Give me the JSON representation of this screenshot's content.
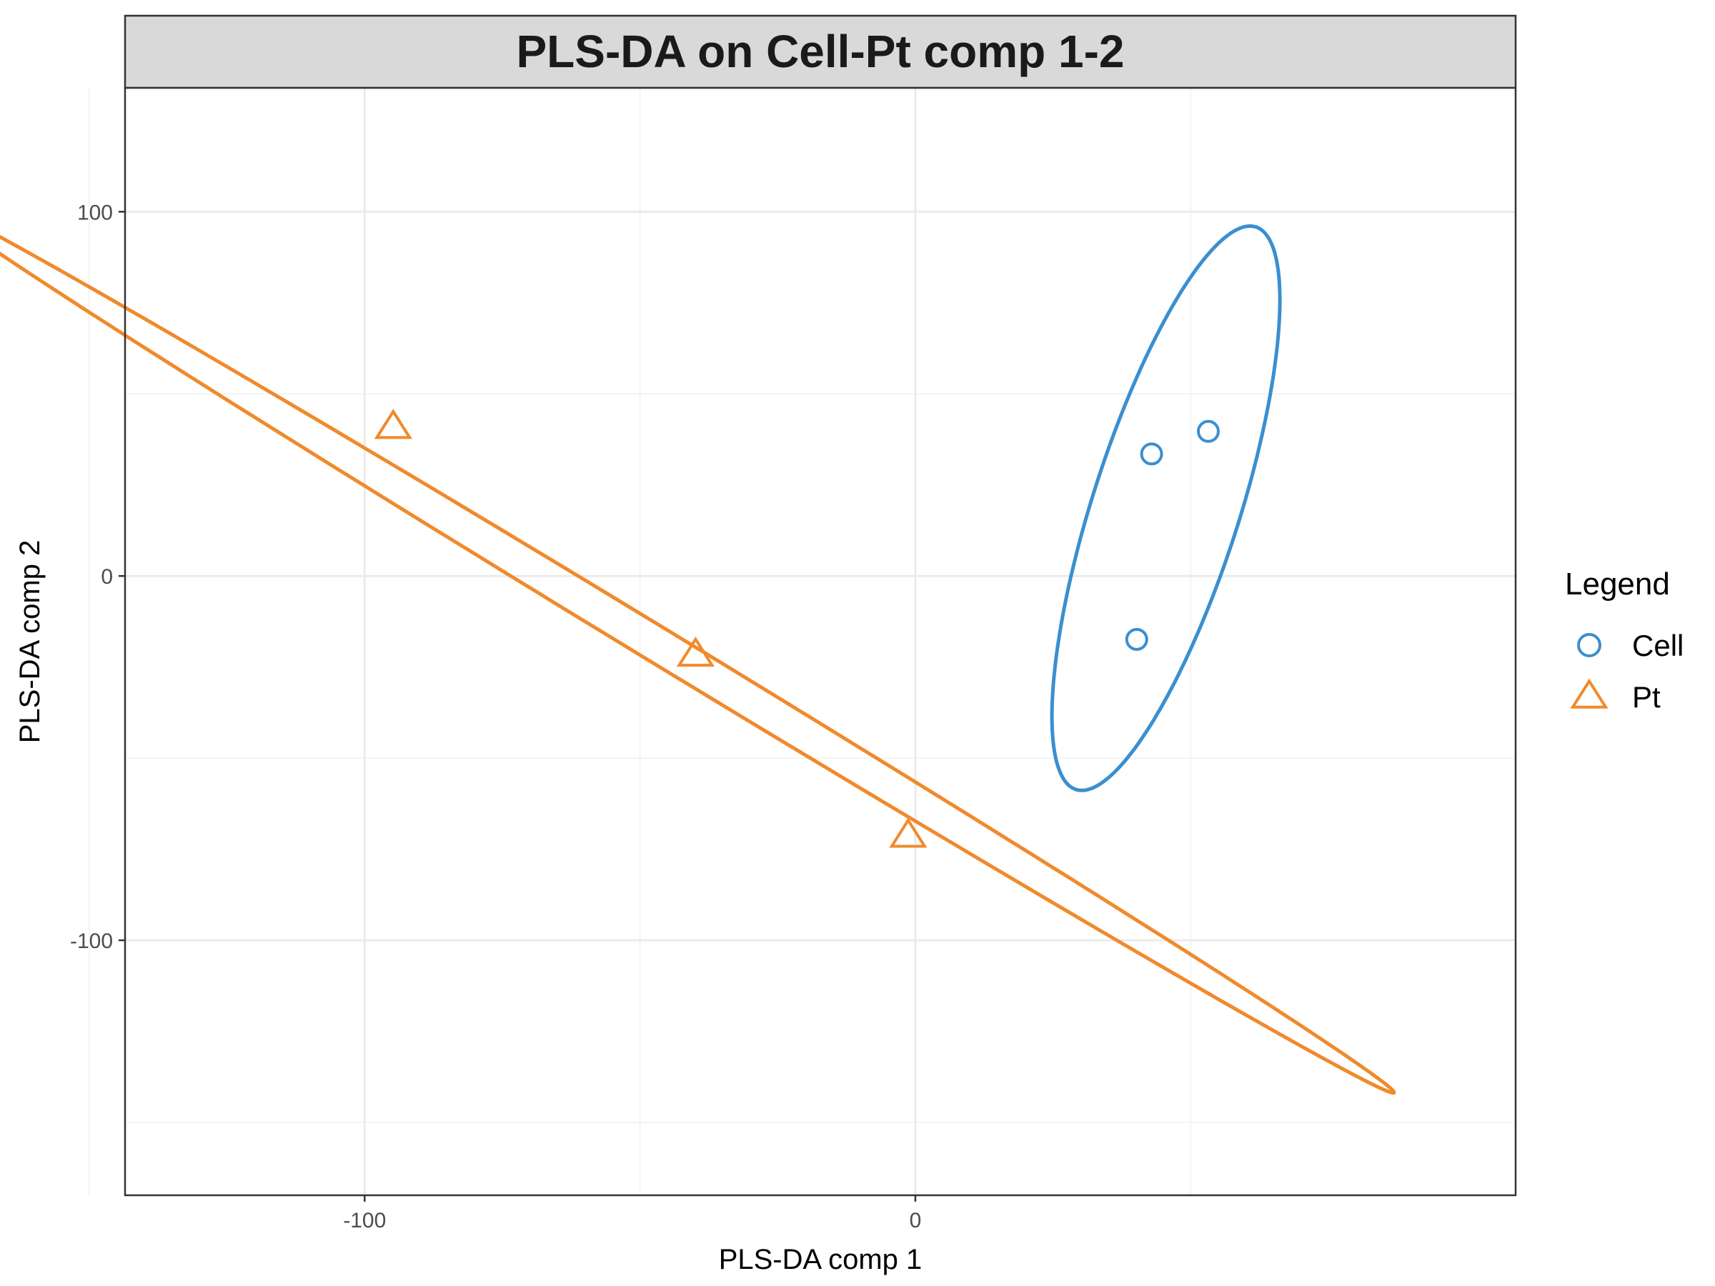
{
  "chart_data": {
    "type": "scatter",
    "title": "PLS-DA on Cell-Pt comp 1-2",
    "xlabel": "PLS-DA comp 1",
    "ylabel": "PLS-DA comp 2",
    "xlim": [
      -143.5,
      109
    ],
    "ylim": [
      -170,
      134
    ],
    "x_ticks": [
      -100,
      0
    ],
    "x_tick_labels": [
      "-100",
      "0"
    ],
    "x_minor_ticks": [
      -150,
      -50,
      50
    ],
    "y_ticks": [
      -100,
      0,
      100
    ],
    "y_tick_labels": [
      "-100",
      "0",
      "100"
    ],
    "y_minor_ticks": [
      -150,
      -50,
      50
    ],
    "grid": true,
    "legend": {
      "title": "Legend",
      "position": "right"
    },
    "series": [
      {
        "name": "Cell",
        "color": "#3a8fd0",
        "marker": "circle",
        "points": [
          {
            "x": 42.9,
            "y": 33.5
          },
          {
            "x": 53.2,
            "y": 39.7
          },
          {
            "x": 40.2,
            "y": -17.4
          }
        ],
        "ellipse": {
          "cx": 45.5,
          "cy": 18.6,
          "rx": 13.7,
          "ry": 79.0,
          "rotation_deg": -11.5
        }
      },
      {
        "name": "Pt",
        "color": "#f08a2c",
        "marker": "triangle",
        "points": [
          {
            "x": -94.8,
            "y": 40.9
          },
          {
            "x": -39.9,
            "y": -21.6
          },
          {
            "x": -1.3,
            "y": -71.3
          }
        ],
        "ellipse": {
          "cx": -45.3,
          "cy": -20.3,
          "rx": 179.6,
          "ry": 4.2,
          "rotation_deg": -42.6
        }
      }
    ]
  }
}
